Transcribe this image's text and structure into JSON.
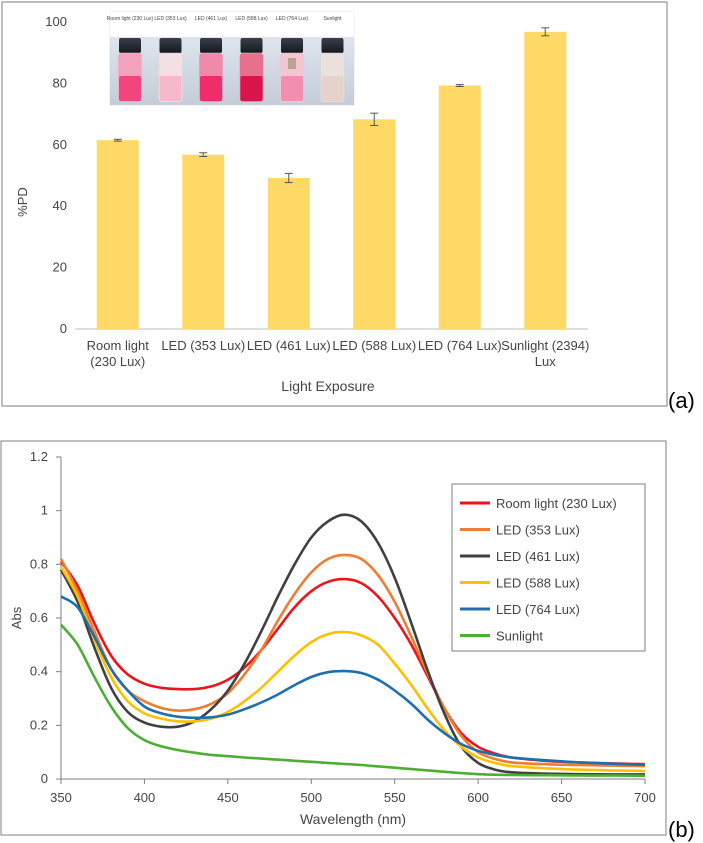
{
  "panel_a_label": "(a)",
  "panel_b_label": "(b)",
  "photo_labels": [
    "Room light (230 Lux)",
    "LED (353 Lux)",
    "LED (461 Lux)",
    "LED (588 Lux)",
    "LED (764 Lux)",
    "Sunlight"
  ],
  "colors": {
    "bar": "#ffd966",
    "frame": "#7f7f7f",
    "room_light": "#e8161b",
    "led_353": "#ed7d31",
    "led_461": "#404040",
    "led_588": "#ffc000",
    "led_764": "#1f6fae",
    "sunlight": "#4cae33"
  },
  "chart_data": [
    {
      "type": "bar",
      "title": "",
      "xlabel": "Light Exposure",
      "ylabel": "%PD",
      "ylim": [
        0,
        100
      ],
      "yticks": [
        0,
        20,
        40,
        60,
        80,
        100
      ],
      "grid": false,
      "categories": [
        [
          "Room light",
          "(230 Lux)"
        ],
        [
          "LED (353 Lux)"
        ],
        [
          "LED (461 Lux)"
        ],
        [
          "LED (588 Lux)"
        ],
        [
          "LED (764 Lux)"
        ],
        [
          "Sunlight (2394)",
          "Lux"
        ]
      ],
      "values": [
        61.5,
        56.8,
        49.2,
        68.3,
        79.3,
        96.8
      ],
      "errors": [
        0.3,
        0.6,
        1.5,
        2.0,
        0.3,
        1.3
      ]
    },
    {
      "type": "line",
      "title": "",
      "xlabel": "Wavelength (nm)",
      "ylabel": "Abs",
      "xlim": [
        350,
        700
      ],
      "ylim": [
        0,
        1.2
      ],
      "xticks": [
        350,
        400,
        450,
        500,
        550,
        600,
        650,
        700
      ],
      "yticks": [
        "0",
        "0.2",
        "0.4",
        "0.6",
        "0.8",
        "1",
        "1.2"
      ],
      "grid": false,
      "legend_position": "top-right",
      "x": [
        350,
        360,
        370,
        380,
        390,
        400,
        410,
        420,
        430,
        440,
        450,
        460,
        470,
        480,
        490,
        500,
        510,
        520,
        530,
        540,
        550,
        560,
        570,
        580,
        590,
        600,
        610,
        620,
        640,
        660,
        680,
        700
      ],
      "series": [
        {
          "name": "Room light (230 Lux)",
          "color_key": "room_light",
          "values": [
            0.81,
            0.72,
            0.58,
            0.46,
            0.39,
            0.355,
            0.34,
            0.335,
            0.335,
            0.345,
            0.37,
            0.415,
            0.48,
            0.56,
            0.64,
            0.7,
            0.735,
            0.745,
            0.73,
            0.68,
            0.6,
            0.5,
            0.38,
            0.26,
            0.17,
            0.12,
            0.095,
            0.08,
            0.068,
            0.062,
            0.058,
            0.055
          ]
        },
        {
          "name": "LED (353 Lux)",
          "color_key": "led_353",
          "values": [
            0.82,
            0.7,
            0.55,
            0.41,
            0.33,
            0.29,
            0.265,
            0.255,
            0.26,
            0.28,
            0.32,
            0.39,
            0.48,
            0.59,
            0.69,
            0.77,
            0.82,
            0.835,
            0.82,
            0.76,
            0.66,
            0.53,
            0.39,
            0.26,
            0.16,
            0.1,
            0.075,
            0.062,
            0.055,
            0.052,
            0.05,
            0.048
          ]
        },
        {
          "name": "LED (461 Lux)",
          "color_key": "led_461",
          "values": [
            0.78,
            0.66,
            0.49,
            0.34,
            0.25,
            0.21,
            0.195,
            0.195,
            0.215,
            0.26,
            0.33,
            0.43,
            0.55,
            0.68,
            0.8,
            0.9,
            0.96,
            0.985,
            0.96,
            0.88,
            0.75,
            0.58,
            0.4,
            0.24,
            0.12,
            0.06,
            0.035,
            0.025,
            0.02,
            0.018,
            0.017,
            0.017
          ]
        },
        {
          "name": "LED (588 Lux)",
          "color_key": "led_588",
          "values": [
            0.79,
            0.68,
            0.52,
            0.38,
            0.29,
            0.245,
            0.225,
            0.215,
            0.215,
            0.225,
            0.25,
            0.29,
            0.34,
            0.4,
            0.46,
            0.51,
            0.54,
            0.548,
            0.535,
            0.5,
            0.43,
            0.35,
            0.26,
            0.18,
            0.12,
            0.08,
            0.06,
            0.048,
            0.04,
            0.035,
            0.032,
            0.03
          ]
        },
        {
          "name": "LED (764 Lux)",
          "color_key": "led_764",
          "values": [
            0.68,
            0.64,
            0.53,
            0.41,
            0.33,
            0.27,
            0.245,
            0.232,
            0.228,
            0.23,
            0.24,
            0.26,
            0.285,
            0.315,
            0.35,
            0.38,
            0.398,
            0.402,
            0.395,
            0.37,
            0.33,
            0.28,
            0.22,
            0.17,
            0.13,
            0.105,
            0.09,
            0.08,
            0.07,
            0.062,
            0.057,
            0.053
          ]
        },
        {
          "name": "Sunlight",
          "color_key": "sunlight",
          "values": [
            0.575,
            0.5,
            0.38,
            0.27,
            0.19,
            0.145,
            0.122,
            0.108,
            0.098,
            0.09,
            0.085,
            0.08,
            0.076,
            0.072,
            0.068,
            0.064,
            0.06,
            0.056,
            0.052,
            0.047,
            0.042,
            0.037,
            0.032,
            0.027,
            0.022,
            0.018,
            0.016,
            0.015,
            0.014,
            0.013,
            0.013,
            0.012
          ]
        }
      ]
    }
  ]
}
